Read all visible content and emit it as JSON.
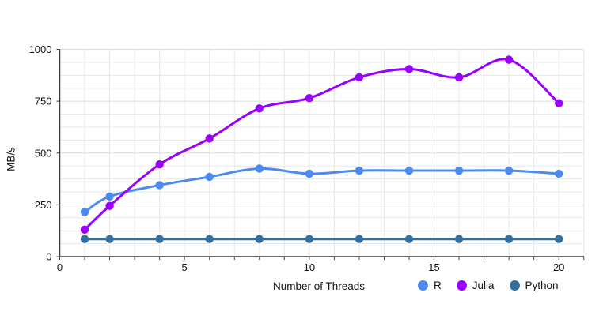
{
  "chart_data": {
    "type": "line",
    "title": "",
    "xlabel": "Number of Threads",
    "ylabel": "MB/s",
    "x": [
      1,
      2,
      4,
      6,
      8,
      10,
      12,
      14,
      16,
      18,
      20
    ],
    "series": [
      {
        "name": "R",
        "color": "#4d8af0",
        "values": [
          215,
          290,
          345,
          385,
          425,
          400,
          415,
          415,
          415,
          415,
          400
        ]
      },
      {
        "name": "Julia",
        "color": "#9900ff",
        "values": [
          130,
          245,
          445,
          570,
          715,
          765,
          865,
          905,
          865,
          950,
          740
        ]
      },
      {
        "name": "Python",
        "color": "#336f9e",
        "values": [
          85,
          85,
          85,
          85,
          85,
          85,
          85,
          85,
          85,
          85,
          85
        ]
      }
    ],
    "xlim": [
      0,
      21
    ],
    "ylim": [
      0,
      1000
    ],
    "x_ticks": [
      0,
      5,
      10,
      15,
      20
    ],
    "y_ticks": [
      0,
      250,
      500,
      750,
      1000
    ],
    "x_minor_step": 1,
    "y_minor_step": 62.5,
    "grid": true,
    "line_smooth": true,
    "legend_position": "bottom-right"
  },
  "colors": {
    "background": "#ffffff",
    "grid_minor": "#e7e7e7",
    "grid_major": "#dcdcdc",
    "axis": "#3c3c3c",
    "tick_text": "#111111"
  }
}
